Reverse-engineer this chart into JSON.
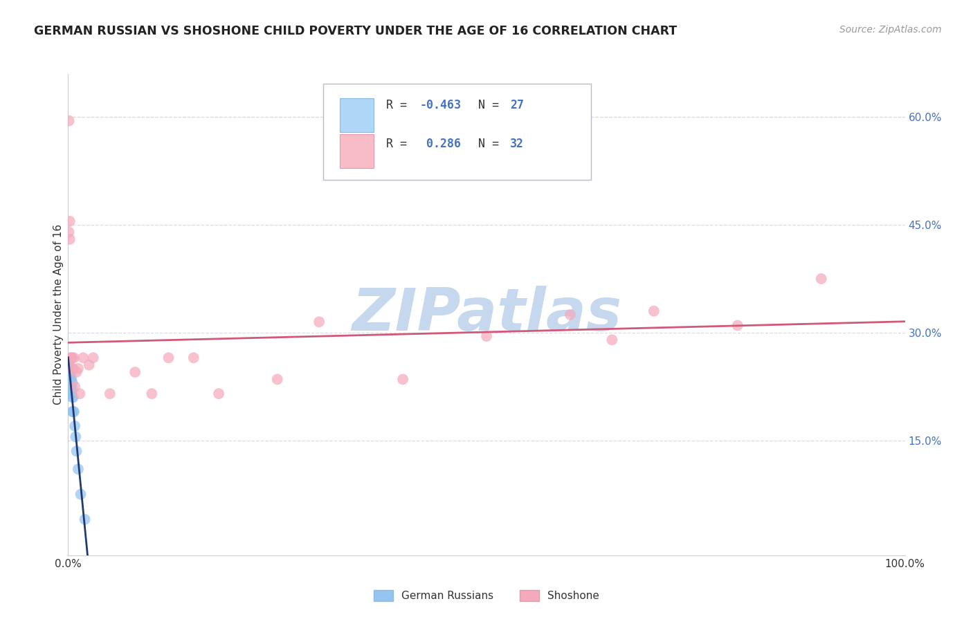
{
  "title": "GERMAN RUSSIAN VS SHOSHONE CHILD POVERTY UNDER THE AGE OF 16 CORRELATION CHART",
  "source": "Source: ZipAtlas.com",
  "ylabel": "Child Poverty Under the Age of 16",
  "xlim": [
    0.0,
    1.0
  ],
  "ylim": [
    -0.01,
    0.66
  ],
  "ytick_values": [
    0.15,
    0.3,
    0.45,
    0.6
  ],
  "ytick_labels": [
    "15.0%",
    "30.0%",
    "45.0%",
    "60.0%"
  ],
  "watermark": "ZIPatlas",
  "watermark_color": "#C5D8EE",
  "background_color": "#FFFFFF",
  "grid_color": "#DCDCE8",
  "title_color": "#222222",
  "source_color": "#999999",
  "ylabel_color": "#333333",
  "ytick_color": "#4472C4",
  "xtick_color": "#333333",
  "german_russian_color": "#94C4F0",
  "german_russian_line_color": "#1E3A6E",
  "german_russian_N": 27,
  "german_russian_x": [
    0.0005,
    0.001,
    0.001,
    0.0015,
    0.002,
    0.002,
    0.002,
    0.003,
    0.003,
    0.003,
    0.003,
    0.004,
    0.004,
    0.004,
    0.005,
    0.005,
    0.005,
    0.005,
    0.006,
    0.006,
    0.007,
    0.008,
    0.009,
    0.01,
    0.012,
    0.015,
    0.02
  ],
  "german_russian_y": [
    0.255,
    0.255,
    0.245,
    0.245,
    0.24,
    0.24,
    0.23,
    0.24,
    0.235,
    0.225,
    0.215,
    0.235,
    0.225,
    0.215,
    0.23,
    0.22,
    0.21,
    0.19,
    0.21,
    0.19,
    0.19,
    0.17,
    0.155,
    0.135,
    0.11,
    0.075,
    0.04
  ],
  "shoshone_color": "#F4AABC",
  "shoshone_line_color": "#D05878",
  "shoshone_N": 32,
  "shoshone_x": [
    0.001,
    0.001,
    0.002,
    0.002,
    0.003,
    0.004,
    0.005,
    0.005,
    0.006,
    0.007,
    0.008,
    0.01,
    0.012,
    0.014,
    0.018,
    0.025,
    0.03,
    0.05,
    0.08,
    0.1,
    0.12,
    0.15,
    0.18,
    0.25,
    0.3,
    0.4,
    0.5,
    0.6,
    0.65,
    0.7,
    0.8,
    0.9
  ],
  "shoshone_y": [
    0.595,
    0.44,
    0.455,
    0.43,
    0.265,
    0.265,
    0.265,
    0.25,
    0.25,
    0.265,
    0.225,
    0.245,
    0.25,
    0.215,
    0.265,
    0.255,
    0.265,
    0.215,
    0.245,
    0.215,
    0.265,
    0.265,
    0.215,
    0.235,
    0.315,
    0.235,
    0.295,
    0.325,
    0.29,
    0.33,
    0.31,
    0.375
  ],
  "legend_labels": [
    "German Russians",
    "Shoshone"
  ]
}
